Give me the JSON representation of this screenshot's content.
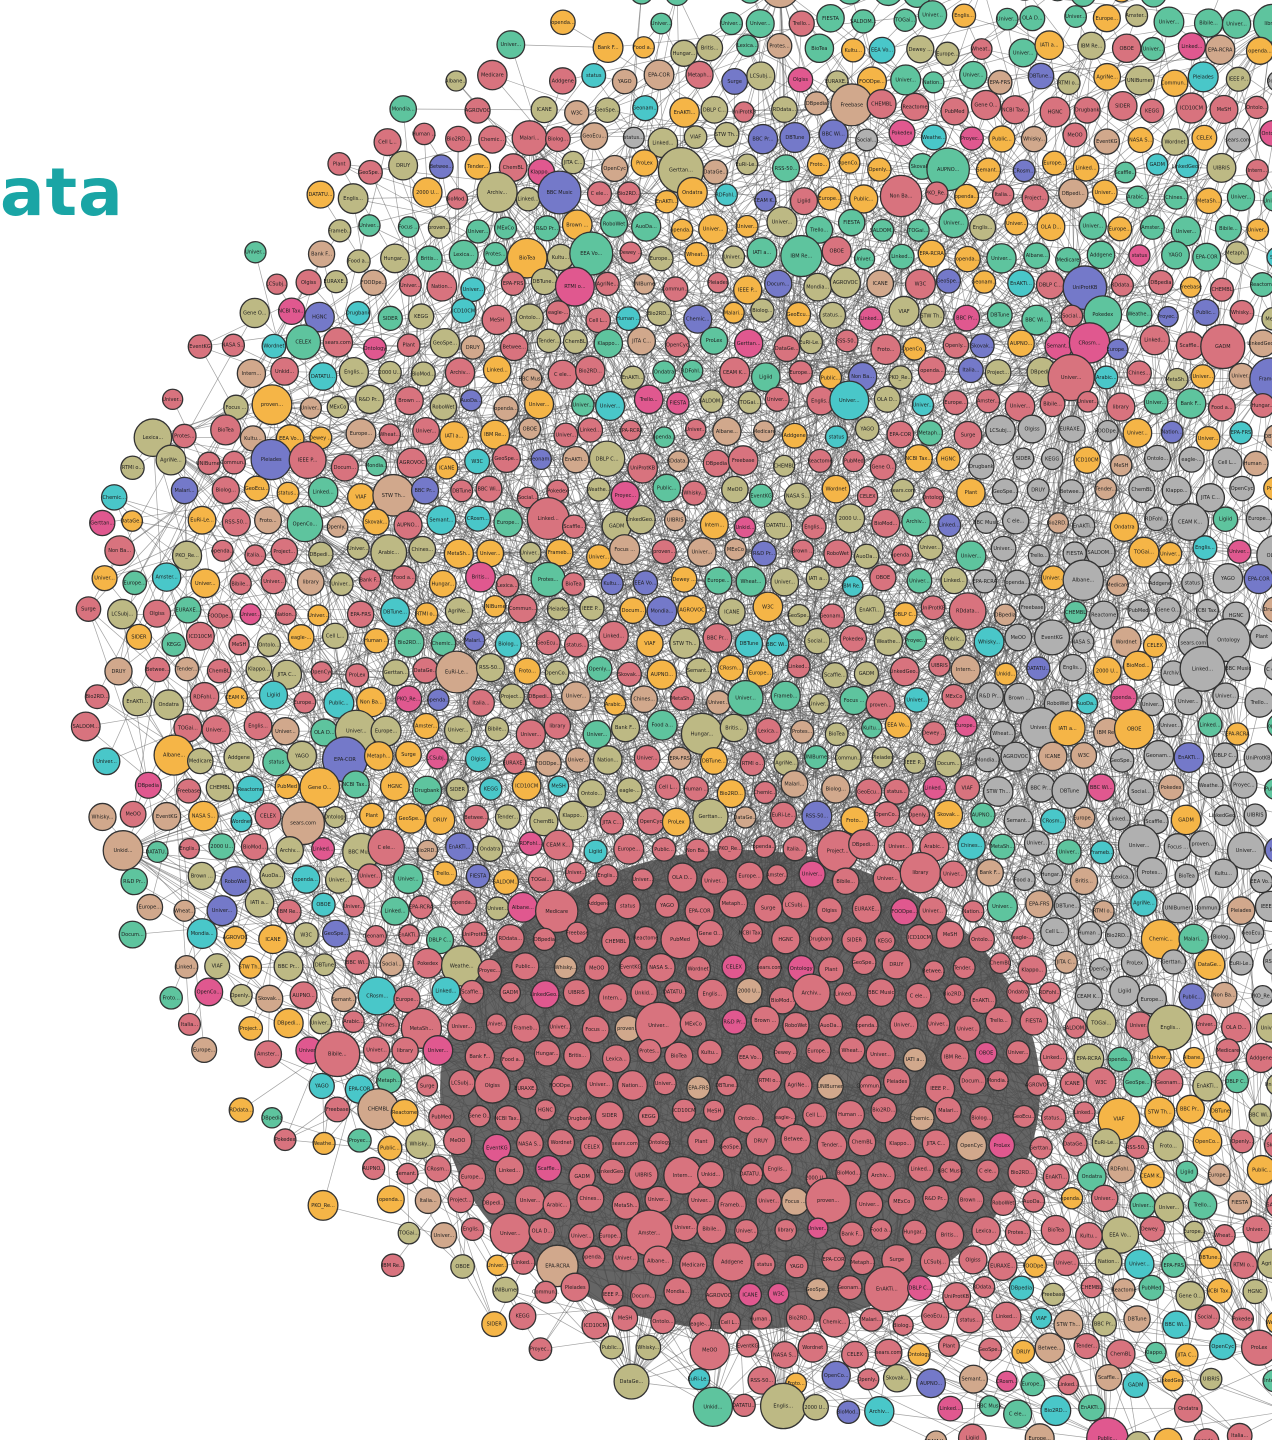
{
  "title_fragment": "ata",
  "colors": {
    "title": "#1aa5a5",
    "edge": "#555555",
    "node_stroke": "#333333",
    "categories": {
      "cross_domain": "#5ec49e",
      "publications": "#bdb984",
      "life_sciences": "#d8737e",
      "government": "#f5b547",
      "media": "#7479c9",
      "geography": "#49c7c9",
      "user_generated": "#d1a88c",
      "social_networking": "#b0b0b0",
      "linguistics": "#e0588f"
    }
  },
  "nodes": [
    {
      "label": "Univer...",
      "cat": "cross_domain"
    },
    {
      "label": "Arabic...",
      "cat": "cross_domain"
    },
    {
      "label": "Chines...",
      "cat": "cross_domain"
    },
    {
      "label": "MetaSh...",
      "cat": "user_generated"
    },
    {
      "label": "Univer...",
      "cat": "cross_domain"
    },
    {
      "label": "Univer...",
      "cat": "cross_domain"
    },
    {
      "label": "Frameb...",
      "cat": "cross_domain"
    },
    {
      "label": "Univer...",
      "cat": "cross_domain"
    },
    {
      "label": "Focus ...",
      "cat": "government"
    },
    {
      "label": "proven...",
      "cat": "user_generated"
    },
    {
      "label": "Univer...",
      "cat": "cross_domain"
    },
    {
      "label": "MExCo",
      "cat": "cross_domain"
    },
    {
      "label": "R&D Pr...",
      "cat": "government"
    },
    {
      "label": "Brown ...",
      "cat": "cross_domain"
    },
    {
      "label": "RoboWet",
      "cat": "cross_domain"
    },
    {
      "label": "AuoDa...",
      "cat": "government"
    },
    {
      "label": "openda...",
      "cat": "government"
    },
    {
      "label": "Univer...",
      "cat": "cross_domain"
    },
    {
      "label": "Univer...",
      "cat": "cross_domain"
    },
    {
      "label": "Univer...",
      "cat": "cross_domain"
    },
    {
      "label": "Trello...",
      "cat": "life_sciences"
    },
    {
      "label": "FIESTA",
      "cat": "cross_domain"
    },
    {
      "label": "SALDOM...",
      "cat": "cross_domain"
    },
    {
      "label": "TOGai...",
      "cat": "cross_domain"
    },
    {
      "label": "Univer...",
      "cat": "cross_domain"
    },
    {
      "label": "Englis...",
      "cat": "government"
    },
    {
      "label": "Univer...",
      "cat": "cross_domain"
    },
    {
      "label": "OLA D...",
      "cat": "cross_domain"
    },
    {
      "label": "Univer...",
      "cat": "cross_domain"
    },
    {
      "label": "Europe...",
      "cat": "government"
    },
    {
      "label": "Amster...",
      "cat": "publications"
    },
    {
      "label": "Univer...",
      "cat": "cross_domain"
    },
    {
      "label": "Bibile...",
      "cat": "cross_domain"
    },
    {
      "label": "Univer...",
      "cat": "cross_domain"
    },
    {
      "label": "library",
      "cat": "cross_domain"
    },
    {
      "label": "Univer...",
      "cat": "cross_domain"
    },
    {
      "label": "Bank F...",
      "cat": "government"
    },
    {
      "label": "Food a...",
      "cat": "government"
    },
    {
      "label": "Hungar...",
      "cat": "publications"
    },
    {
      "label": "Britis...",
      "cat": "publications"
    },
    {
      "label": "Lexica...",
      "cat": "cross_domain"
    },
    {
      "label": "Protes...",
      "cat": "user_generated"
    },
    {
      "label": "BioTea",
      "cat": "cross_domain"
    },
    {
      "label": "Kultu...",
      "cat": "government"
    },
    {
      "label": "EEA Vo...",
      "cat": "geography"
    },
    {
      "label": "Dewey ...",
      "cat": "publications"
    },
    {
      "label": "Europe...",
      "cat": "publications"
    },
    {
      "label": "Wheat...",
      "cat": "life_sciences"
    },
    {
      "label": "Univer...",
      "cat": "cross_domain"
    },
    {
      "label": "IATI a...",
      "cat": "government"
    },
    {
      "label": "IBM Re...",
      "cat": "publications"
    },
    {
      "label": "OBOE",
      "cat": "life_sciences"
    },
    {
      "label": "Univer...",
      "cat": "cross_domain"
    },
    {
      "label": "Linked...",
      "cat": "linguistics"
    },
    {
      "label": "EPA-RCRA",
      "cat": "user_generated"
    },
    {
      "label": "openda...",
      "cat": "government"
    },
    {
      "label": "Univer...",
      "cat": "cross_domain"
    },
    {
      "label": "Albane...",
      "cat": "publications"
    },
    {
      "label": "Medicare",
      "cat": "life_sciences"
    },
    {
      "label": "Addgene",
      "cat": "life_sciences"
    },
    {
      "label": "status",
      "cat": "geography"
    },
    {
      "label": "YAGO",
      "cat": "user_generated"
    },
    {
      "label": "EPA-COR",
      "cat": "user_generated"
    },
    {
      "label": "Metaph...",
      "cat": "life_sciences"
    },
    {
      "label": "Surge",
      "cat": "media"
    },
    {
      "label": "LCSubj...",
      "cat": "publications"
    },
    {
      "label": "Olgiss",
      "cat": "linguistics"
    },
    {
      "label": "EURAXE...",
      "cat": "publications"
    },
    {
      "label": "FOODpe...",
      "cat": "government"
    },
    {
      "label": "Univer...",
      "cat": "cross_domain"
    },
    {
      "label": "Nation...",
      "cat": "cross_domain"
    },
    {
      "label": "Univer...",
      "cat": "cross_domain"
    },
    {
      "label": "EPA-FRS",
      "cat": "user_generated"
    },
    {
      "label": "DBTune...",
      "cat": "media"
    },
    {
      "label": "RTMI o...",
      "cat": "publications"
    },
    {
      "label": "AgriNe...",
      "cat": "government"
    },
    {
      "label": "UNIBurner",
      "cat": "publications"
    },
    {
      "label": "Commun...",
      "cat": "government"
    },
    {
      "label": "Pleiades",
      "cat": "geography"
    },
    {
      "label": "IEEE P...",
      "cat": "publications"
    },
    {
      "label": "Docum...",
      "cat": "social_networking"
    },
    {
      "label": "Mondia...",
      "cat": "cross_domain"
    },
    {
      "label": "AGROVOC",
      "cat": "life_sciences"
    },
    {
      "label": "ICANE",
      "cat": "publications"
    },
    {
      "label": "W3C",
      "cat": "user_generated"
    },
    {
      "label": "GeoSpe...",
      "cat": "publications"
    },
    {
      "label": "Geonam...",
      "cat": "geography"
    },
    {
      "label": "EnAKTi...",
      "cat": "government"
    },
    {
      "label": "DBLP C...",
      "cat": "publications"
    },
    {
      "label": "UniProtKB",
      "cat": "life_sciences"
    },
    {
      "label": "RDdata...",
      "cat": "publications"
    },
    {
      "label": "DBpedia",
      "cat": "user_generated"
    },
    {
      "label": "Freebase",
      "cat": "user_generated"
    },
    {
      "label": "CHEMBL",
      "cat": "life_sciences"
    },
    {
      "label": "Reactome",
      "cat": "life_sciences"
    },
    {
      "label": "PubMed",
      "cat": "life_sciences"
    },
    {
      "label": "Gene O...",
      "cat": "life_sciences"
    },
    {
      "label": "NCBI Tax...",
      "cat": "life_sciences"
    },
    {
      "label": "HGNC",
      "cat": "life_sciences"
    },
    {
      "label": "Drugbank",
      "cat": "life_sciences"
    },
    {
      "label": "SIDER",
      "cat": "life_sciences"
    },
    {
      "label": "KEGG",
      "cat": "life_sciences"
    },
    {
      "label": "ICD10CM",
      "cat": "life_sciences"
    },
    {
      "label": "MeSH",
      "cat": "life_sciences"
    },
    {
      "label": "Ontolo...",
      "cat": "life_sciences"
    },
    {
      "label": "eagle-...",
      "cat": "life_sciences"
    },
    {
      "label": "Cell L...",
      "cat": "life_sciences"
    },
    {
      "label": "Human ...",
      "cat": "life_sciences"
    },
    {
      "label": "Bio2RD...",
      "cat": "life_sciences"
    },
    {
      "label": "Chemic...",
      "cat": "life_sciences"
    },
    {
      "label": "Malari...",
      "cat": "life_sciences"
    },
    {
      "label": "Biolog...",
      "cat": "life_sciences"
    },
    {
      "label": "GeoEcu...",
      "cat": "user_generated"
    },
    {
      "label": "status...",
      "cat": "social_networking"
    },
    {
      "label": "Linked...",
      "cat": "publications"
    },
    {
      "label": "VIAF",
      "cat": "publications"
    },
    {
      "label": "STW Th...",
      "cat": "publications"
    },
    {
      "label": "BBC Pr...",
      "cat": "media"
    },
    {
      "label": "DBTune",
      "cat": "media"
    },
    {
      "label": "BBC Wi...",
      "cat": "media"
    },
    {
      "label": "Social...",
      "cat": "social_networking"
    },
    {
      "label": "Pokedex",
      "cat": "linguistics"
    },
    {
      "label": "Weathe...",
      "cat": "geography"
    },
    {
      "label": "Proyec...",
      "cat": "linguistics"
    },
    {
      "label": "Public...",
      "cat": "government"
    },
    {
      "label": "Whisky...",
      "cat": "user_generated"
    },
    {
      "label": "MeOO",
      "cat": "life_sciences"
    },
    {
      "label": "EventKG",
      "cat": "user_generated"
    },
    {
      "label": "NASA S...",
      "cat": "government"
    },
    {
      "label": "Wordnet",
      "cat": "publications"
    },
    {
      "label": "CELEX",
      "cat": "government"
    },
    {
      "label": "sears.com",
      "cat": "social_networking"
    },
    {
      "label": "Ontology",
      "cat": "linguistics"
    },
    {
      "label": "Plant",
      "cat": "life_sciences"
    },
    {
      "label": "GeoSpe...",
      "cat": "life_sciences"
    },
    {
      "label": "DRUY",
      "cat": "publications"
    },
    {
      "label": "Betwee...",
      "cat": "media"
    },
    {
      "label": "Tender...",
      "cat": "government"
    },
    {
      "label": "ChemBL",
      "cat": "life_sciences"
    },
    {
      "label": "Klappo...",
      "cat": "linguistics"
    },
    {
      "label": "JITA C...",
      "cat": "publications"
    },
    {
      "label": "OpenCyc",
      "cat": "user_generated"
    },
    {
      "label": "ProLex",
      "cat": "government"
    },
    {
      "label": "Gerttan...",
      "cat": "publications"
    },
    {
      "label": "DataGe...",
      "cat": "user_generated"
    },
    {
      "label": "EuRi-Le...",
      "cat": "publications"
    },
    {
      "label": "RSS-50...",
      "cat": "cross_domain"
    },
    {
      "label": "Froto...",
      "cat": "government"
    },
    {
      "label": "OpenCo...",
      "cat": "government"
    },
    {
      "label": "Openly...",
      "cat": "government"
    },
    {
      "label": "Skovak...",
      "cat": "cross_domain"
    },
    {
      "label": "AUPNO...",
      "cat": "cross_domain"
    },
    {
      "label": "Semant...",
      "cat": "government"
    },
    {
      "label": "CRosm...",
      "cat": "media"
    },
    {
      "label": "Europe...",
      "cat": "government"
    },
    {
      "label": "Linked...",
      "cat": "government"
    },
    {
      "label": "Scaffle...",
      "cat": "cross_domain"
    },
    {
      "label": "GADM",
      "cat": "geography"
    },
    {
      "label": "LinkedGeo...",
      "cat": "geography"
    },
    {
      "label": "UIBRIS",
      "cat": "publications"
    },
    {
      "label": "Intern...",
      "cat": "life_sciences"
    },
    {
      "label": "Unkid...",
      "cat": "life_sciences"
    },
    {
      "label": "DATATU...",
      "cat": "government"
    },
    {
      "label": "Englis...",
      "cat": "publications"
    },
    {
      "label": "2000 U...",
      "cat": "government"
    },
    {
      "label": "BioMod...",
      "cat": "life_sciences"
    },
    {
      "label": "Archiv...",
      "cat": "publications"
    },
    {
      "label": "Linked...",
      "cat": "publications"
    },
    {
      "label": "BBC Music",
      "cat": "media"
    },
    {
      "label": "C ele...",
      "cat": "life_sciences"
    },
    {
      "label": "Bio2RD...",
      "cat": "life_sciences"
    },
    {
      "label": "EnAKTi...",
      "cat": "government"
    },
    {
      "label": "Ondatra",
      "cat": "government"
    },
    {
      "label": "RDFohl...",
      "cat": "geography"
    },
    {
      "label": "CEAM K...",
      "cat": "media"
    },
    {
      "label": "Ligiid",
      "cat": "life_sciences"
    },
    {
      "label": "Europe...",
      "cat": "government"
    },
    {
      "label": "Public...",
      "cat": "government"
    },
    {
      "label": "Non Ba...",
      "cat": "life_sciences"
    },
    {
      "label": "PKO_Re...",
      "cat": "life_sciences"
    },
    {
      "label": "openda...",
      "cat": "government"
    },
    {
      "label": "Italia...",
      "cat": "life_sciences"
    },
    {
      "label": "Project...",
      "cat": "life_sciences"
    },
    {
      "label": "DBpedi...",
      "cat": "user_generated"
    }
  ]
}
